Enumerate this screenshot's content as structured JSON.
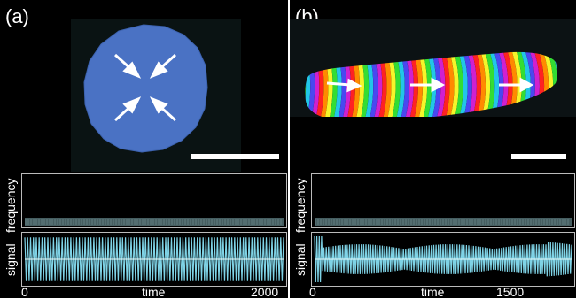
{
  "panels": [
    {
      "label": "(a)",
      "yaxis_top": "frequency",
      "yaxis_bottom": "signal",
      "x_label": "time",
      "x_ticks": [
        "0",
        "2000"
      ]
    },
    {
      "label": "(b)",
      "yaxis_top": "frequency",
      "yaxis_bottom": "signal",
      "x_label": "time",
      "x_ticks": [
        "0",
        "1500"
      ]
    }
  ],
  "colors": {
    "background": "#000000",
    "disc": "#4a72c4",
    "signal": "#7fd3e6",
    "frame": "#bbbbbb",
    "arrows": "#ffffff"
  },
  "icons": [
    "inward-arrow-icon",
    "rightward-arrow-icon"
  ]
}
